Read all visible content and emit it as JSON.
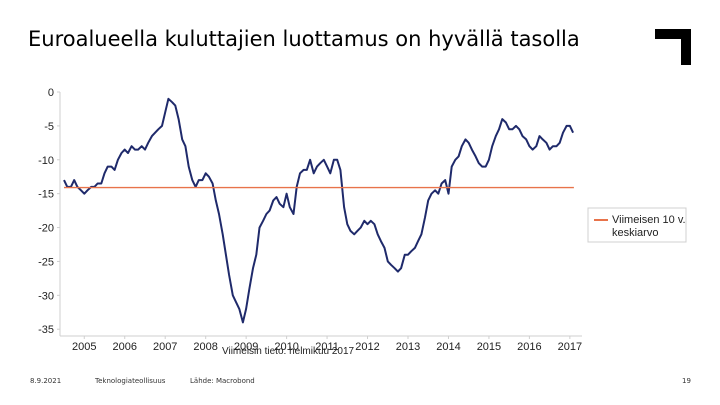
{
  "title": "Euroalueella kuluttajien luottamus on hyvällä tasolla",
  "footer": {
    "date": "8.9.2021",
    "org": "Teknologiateollisuus",
    "source": "Lähde: Macrobond",
    "page": "19"
  },
  "colors": {
    "series": "#1f2a6b",
    "average": "#e8734a",
    "logo": "#000000"
  },
  "chart_data": {
    "type": "line",
    "note": "Viimeisin tieto: helmikuu 2017",
    "xlim": [
      2004.4,
      2017.3
    ],
    "ylim": [
      -36,
      0
    ],
    "xticks": [
      2005,
      2006,
      2007,
      2008,
      2009,
      2010,
      2011,
      2012,
      2013,
      2014,
      2015,
      2016,
      2017
    ],
    "xtick_labels": [
      "2005",
      "2006",
      "2007",
      "2008",
      "2009",
      "2010",
      "2011",
      "2012",
      "2013",
      "2014",
      "2015",
      "2016",
      "2017"
    ],
    "yticks": [
      0,
      -5,
      -10,
      -15,
      -20,
      -25,
      -30,
      -35
    ],
    "ytick_labels": [
      "0",
      "-5",
      "-10",
      "-15",
      "-20",
      "-25",
      "-30",
      "-35"
    ],
    "legend": {
      "entries": [
        "Viimeisen 10 v. keskiarvo"
      ],
      "placement": "right"
    },
    "series": [
      {
        "name": "",
        "x": [
          2004.5,
          2004.58,
          2004.67,
          2004.75,
          2004.83,
          2004.92,
          2005.0,
          2005.08,
          2005.17,
          2005.25,
          2005.33,
          2005.42,
          2005.5,
          2005.58,
          2005.67,
          2005.75,
          2005.83,
          2005.92,
          2006.0,
          2006.08,
          2006.17,
          2006.25,
          2006.33,
          2006.42,
          2006.5,
          2006.58,
          2006.67,
          2006.75,
          2006.83,
          2006.92,
          2007.0,
          2007.08,
          2007.17,
          2007.25,
          2007.33,
          2007.42,
          2007.5,
          2007.58,
          2007.67,
          2007.75,
          2007.83,
          2007.92,
          2008.0,
          2008.08,
          2008.17,
          2008.25,
          2008.33,
          2008.42,
          2008.5,
          2008.58,
          2008.67,
          2008.75,
          2008.83,
          2008.92,
          2009.0,
          2009.08,
          2009.17,
          2009.25,
          2009.33,
          2009.42,
          2009.5,
          2009.58,
          2009.67,
          2009.75,
          2009.83,
          2009.92,
          2010.0,
          2010.08,
          2010.17,
          2010.25,
          2010.33,
          2010.42,
          2010.5,
          2010.58,
          2010.67,
          2010.75,
          2010.83,
          2010.92,
          2011.0,
          2011.08,
          2011.17,
          2011.25,
          2011.33,
          2011.42,
          2011.5,
          2011.58,
          2011.67,
          2011.75,
          2011.83,
          2011.92,
          2012.0,
          2012.08,
          2012.17,
          2012.25,
          2012.33,
          2012.42,
          2012.5,
          2012.58,
          2012.67,
          2012.75,
          2012.83,
          2012.92,
          2013.0,
          2013.08,
          2013.17,
          2013.25,
          2013.33,
          2013.42,
          2013.5,
          2013.58,
          2013.67,
          2013.75,
          2013.83,
          2013.92,
          2014.0,
          2014.08,
          2014.17,
          2014.25,
          2014.33,
          2014.42,
          2014.5,
          2014.58,
          2014.67,
          2014.75,
          2014.83,
          2014.92,
          2015.0,
          2015.08,
          2015.17,
          2015.25,
          2015.33,
          2015.42,
          2015.5,
          2015.58,
          2015.67,
          2015.75,
          2015.83,
          2015.92,
          2016.0,
          2016.08,
          2016.17,
          2016.25,
          2016.33,
          2016.42,
          2016.5,
          2016.58,
          2016.67,
          2016.75,
          2016.83,
          2016.92,
          2017.0,
          2017.08
        ],
        "values": [
          -13.0,
          -14.0,
          -14.0,
          -13.0,
          -14.0,
          -14.5,
          -15.0,
          -14.5,
          -14.0,
          -14.0,
          -13.5,
          -13.5,
          -12.0,
          -11.0,
          -11.0,
          -11.5,
          -10.0,
          -9.0,
          -8.5,
          -9.0,
          -8.0,
          -8.5,
          -8.5,
          -8.0,
          -8.5,
          -7.5,
          -6.5,
          -6.0,
          -5.5,
          -5.0,
          -3.0,
          -1.0,
          -1.5,
          -2.0,
          -4.0,
          -7.0,
          -8.0,
          -11.0,
          -13.0,
          -14.0,
          -13.0,
          -13.0,
          -12.0,
          -12.5,
          -13.5,
          -16.0,
          -18.0,
          -21.0,
          -24.0,
          -27.0,
          -30.0,
          -31.0,
          -32.0,
          -34.0,
          -32.0,
          -29.0,
          -26.0,
          -24.0,
          -20.0,
          -19.0,
          -18.0,
          -17.5,
          -16.0,
          -15.5,
          -16.5,
          -17.0,
          -15.0,
          -17.0,
          -18.0,
          -14.0,
          -12.0,
          -11.5,
          -11.5,
          -10.0,
          -12.0,
          -11.0,
          -10.5,
          -10.0,
          -11.0,
          -12.0,
          -10.0,
          -10.0,
          -11.5,
          -17.0,
          -19.5,
          -20.5,
          -21.0,
          -20.5,
          -20.0,
          -19.0,
          -19.5,
          -19.0,
          -19.5,
          -21.0,
          -22.0,
          -23.0,
          -25.0,
          -25.5,
          -26.0,
          -26.5,
          -26.0,
          -24.0,
          -24.0,
          -23.5,
          -23.0,
          -22.0,
          -21.0,
          -18.5,
          -16.0,
          -15.0,
          -14.5,
          -15.0,
          -13.5,
          -13.0,
          -15.0,
          -11.0,
          -10.0,
          -9.5,
          -8.0,
          -7.0,
          -7.5,
          -8.5,
          -9.5,
          -10.5,
          -11.0,
          -11.0,
          -10.0,
          -8.0,
          -6.5,
          -5.5,
          -4.0,
          -4.5,
          -5.5,
          -5.5,
          -5.0,
          -5.5,
          -6.5,
          -7.0,
          -8.0,
          -8.5,
          -8.0,
          -6.5,
          -7.0,
          -7.5,
          -8.5,
          -8.0,
          -8.0,
          -7.5,
          -6.0,
          -5.0,
          -5.0,
          -6.0
        ]
      },
      {
        "name": "Viimeisen 10 v. keskiarvo",
        "x": [
          2004.5,
          2017.1
        ],
        "values": [
          -14.1,
          -14.1
        ]
      }
    ]
  }
}
